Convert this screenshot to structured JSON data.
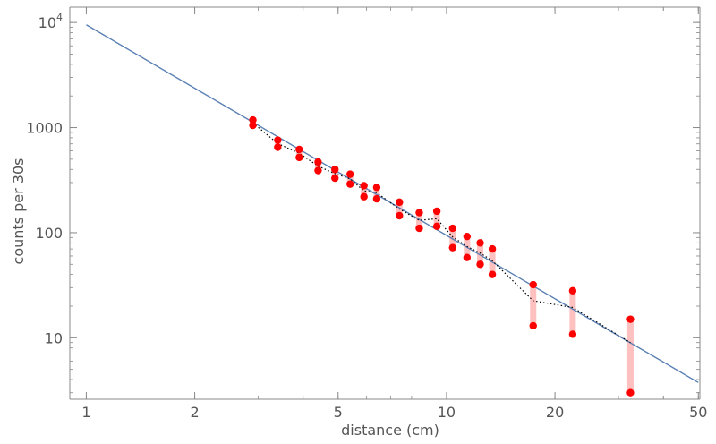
{
  "chart_data": {
    "type": "scatter",
    "title": "",
    "xlabel": "distance (cm)",
    "ylabel": "counts per 30s",
    "x_scale": "log",
    "y_scale": "log",
    "xlim": [
      0.9,
      50.5
    ],
    "ylim": [
      2.6,
      14000
    ],
    "grid": false,
    "legend": "none",
    "x_ticks": [
      {
        "value": 1,
        "label": "1"
      },
      {
        "value": 2,
        "label": "2"
      },
      {
        "value": 5,
        "label": "5"
      },
      {
        "value": 10,
        "label": "10"
      },
      {
        "value": 20,
        "label": "20"
      },
      {
        "value": 50,
        "label": "50"
      }
    ],
    "y_ticks": [
      {
        "value": 10,
        "label": "10"
      },
      {
        "value": 100,
        "label": "100"
      },
      {
        "value": 1000,
        "label": "1000"
      },
      {
        "value": 10000,
        "label_base": "10",
        "label_exp": "4"
      }
    ],
    "colors": {
      "points": "#ff0000",
      "error_bars": "#ffc0c0",
      "fit_line": "#5a80b4",
      "mean_line": "#000000",
      "axis": "#888888",
      "text": "#555555"
    },
    "series": [
      {
        "type": "points_with_range",
        "x": [
          2.9,
          3.4,
          3.9,
          4.4,
          4.9,
          5.4,
          5.9,
          6.4,
          7.4,
          8.4,
          9.4,
          10.4,
          11.4,
          12.4,
          13.4,
          17.4,
          22.4,
          32.4
        ],
        "low": [
          1050,
          650,
          520,
          390,
          330,
          290,
          220,
          210,
          145,
          110,
          115,
          72,
          58,
          50,
          40,
          13,
          10.8,
          3
        ],
        "high": [
          1180,
          760,
          620,
          470,
          400,
          360,
          280,
          270,
          195,
          155,
          160,
          110,
          92,
          80,
          70,
          32,
          28,
          15
        ]
      },
      {
        "type": "mean_line",
        "style": "dotted",
        "x": [
          2.9,
          3.4,
          3.9,
          4.4,
          4.9,
          5.4,
          5.9,
          6.4,
          7.4,
          8.4,
          9.4,
          10.4,
          11.4,
          12.4,
          13.4,
          17.4,
          22.4,
          32.4
        ],
        "y": [
          1110,
          705,
          570,
          430,
          365,
          325,
          250,
          240,
          168,
          131,
          136,
          91,
          74,
          64,
          54,
          22.5,
          19.4,
          9
        ]
      },
      {
        "type": "fit_line",
        "x": [
          1,
          50
        ],
        "y": [
          9500,
          3.75
        ]
      }
    ]
  }
}
